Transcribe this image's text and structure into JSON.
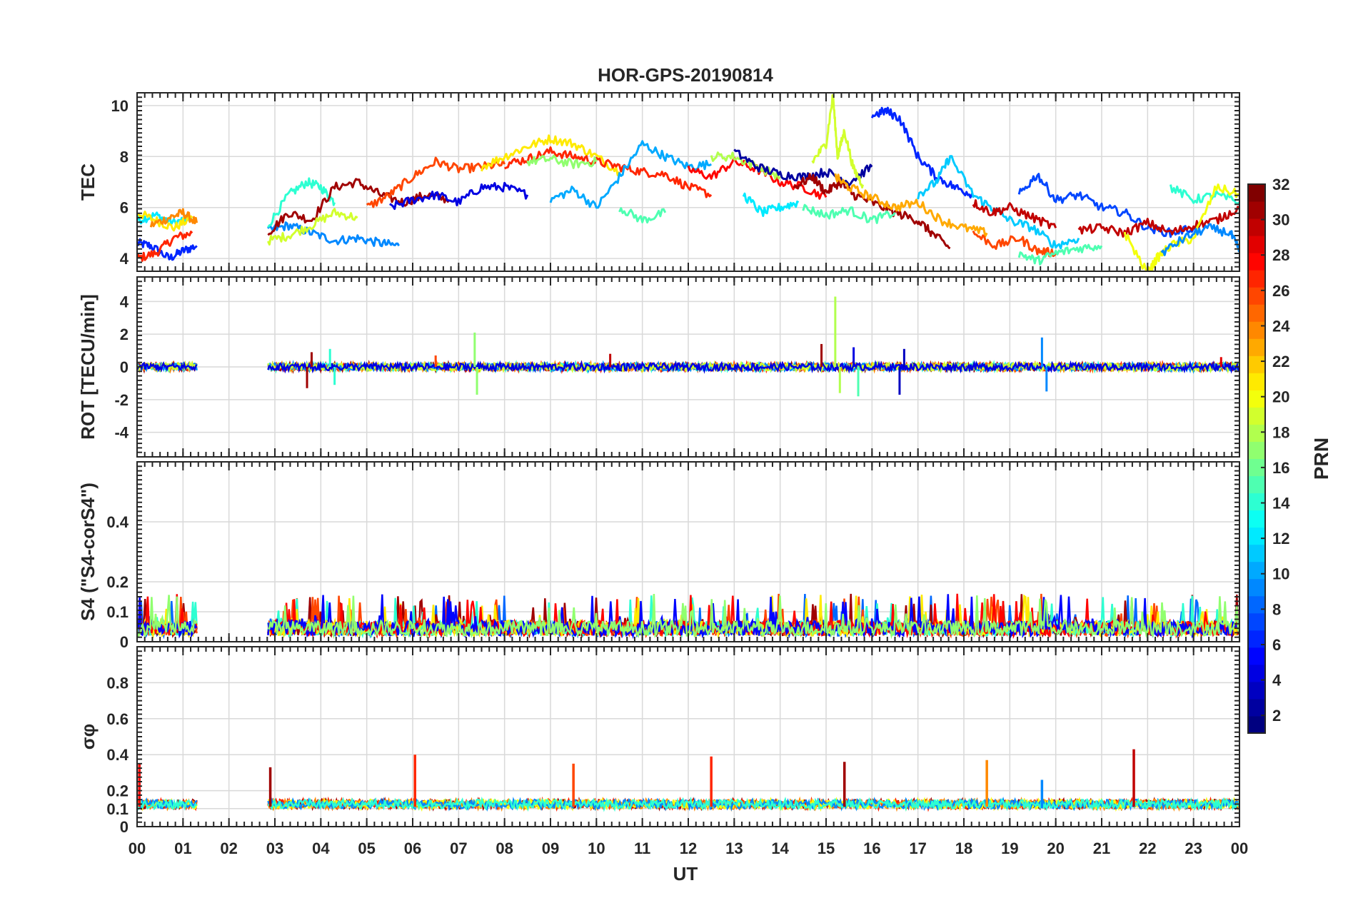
{
  "figure": {
    "title": "HOR-GPS-20190814",
    "xlabel": "UT"
  },
  "chart_data": [
    {
      "type": "line",
      "ylabel": "TEC",
      "x_domain_hours": [
        0,
        24
      ],
      "ylim": [
        3.5,
        10.5
      ],
      "yticks": [
        "4",
        "6",
        "8",
        "10"
      ],
      "ytick_values": [
        4,
        6,
        8,
        10
      ],
      "grid": true,
      "series": [
        {
          "color_prn": 6,
          "x": [
            0.0,
            0.3,
            0.7,
            1.0,
            1.3
          ],
          "y": [
            4.6,
            4.5,
            4.0,
            4.3,
            4.5
          ]
        },
        {
          "color_prn": 12,
          "x": [
            0.0,
            0.4,
            0.8,
            1.2
          ],
          "y": [
            5.5,
            5.7,
            5.4,
            5.6
          ]
        },
        {
          "color_prn": 27,
          "x": [
            0.0,
            0.4,
            0.8,
            1.2
          ],
          "y": [
            4.0,
            4.2,
            4.8,
            5.0
          ]
        },
        {
          "color_prn": 21,
          "x": [
            0.0,
            0.4,
            0.8,
            1.2
          ],
          "y": [
            5.8,
            5.5,
            5.2,
            5.6
          ]
        },
        {
          "color_prn": 24,
          "x": [
            0.3,
            0.7,
            1.0,
            1.3
          ],
          "y": [
            5.3,
            5.6,
            5.8,
            5.4
          ]
        },
        {
          "color_prn": 9,
          "x": [
            2.85,
            3.3,
            3.8,
            4.3,
            4.8,
            5.3,
            5.7
          ],
          "y": [
            5.1,
            5.3,
            5.0,
            4.7,
            4.8,
            4.6,
            4.5
          ]
        },
        {
          "color_prn": 14,
          "x": [
            2.85,
            3.3,
            3.7,
            4.0,
            4.3
          ],
          "y": [
            5.3,
            6.5,
            7.0,
            6.8,
            6.2
          ]
        },
        {
          "color_prn": 31,
          "x": [
            2.85,
            3.3,
            3.8,
            4.3,
            4.8,
            5.3,
            5.8,
            6.3,
            6.8
          ],
          "y": [
            5.0,
            5.8,
            5.5,
            6.8,
            7.0,
            6.5,
            6.2,
            6.5,
            6.3
          ]
        },
        {
          "color_prn": 19,
          "x": [
            2.85,
            3.3,
            3.8,
            4.3,
            4.8
          ],
          "y": [
            4.7,
            4.9,
            5.3,
            5.8,
            5.6
          ]
        },
        {
          "color_prn": 26,
          "x": [
            5.0,
            5.5,
            6.0,
            6.5,
            7.0,
            7.5,
            8.0
          ],
          "y": [
            6.0,
            6.5,
            7.2,
            7.8,
            7.5,
            7.6,
            7.7
          ]
        },
        {
          "color_prn": 4,
          "x": [
            5.5,
            6.0,
            6.5,
            7.0,
            7.5,
            8.0,
            8.5
          ],
          "y": [
            6.0,
            6.3,
            6.5,
            6.2,
            6.8,
            6.8,
            6.5
          ]
        },
        {
          "color_prn": 21,
          "x": [
            7.5,
            8.0,
            8.5,
            9.0,
            9.5,
            10.0,
            10.5
          ],
          "y": [
            7.6,
            8.0,
            8.4,
            8.7,
            8.5,
            8.0,
            7.4
          ]
        },
        {
          "color_prn": 27,
          "x": [
            8.0,
            8.5,
            9.0,
            9.5,
            10.0,
            10.5,
            11.0,
            11.5,
            12.0,
            12.5
          ],
          "y": [
            7.7,
            7.9,
            8.2,
            8.0,
            7.8,
            7.6,
            7.4,
            7.3,
            6.8,
            6.5
          ]
        },
        {
          "color_prn": 17,
          "x": [
            8.5,
            9.0,
            9.5,
            10.0
          ],
          "y": [
            7.8,
            7.9,
            7.7,
            7.8
          ]
        },
        {
          "color_prn": 10,
          "x": [
            9.0,
            9.5,
            10.0,
            10.5,
            11.0,
            11.5,
            12.0,
            12.5
          ],
          "y": [
            6.3,
            6.7,
            6.0,
            7.2,
            8.5,
            8.0,
            7.6,
            7.7
          ]
        },
        {
          "color_prn": 15,
          "x": [
            10.5,
            11.0,
            11.5
          ],
          "y": [
            6.0,
            5.5,
            5.8
          ]
        },
        {
          "color_prn": 28,
          "x": [
            12.0,
            12.5,
            13.0,
            13.5,
            14.0,
            14.5,
            15.0
          ],
          "y": [
            7.5,
            7.2,
            7.8,
            7.5,
            7.0,
            6.8,
            6.4
          ]
        },
        {
          "color_prn": 18,
          "x": [
            12.5,
            13.0,
            13.5,
            14.0
          ],
          "y": [
            8.0,
            8.0,
            7.6,
            7.2
          ]
        },
        {
          "color_prn": 2,
          "x": [
            13.0,
            13.5,
            14.0,
            14.5,
            15.0,
            15.5,
            16.0
          ],
          "y": [
            8.2,
            7.6,
            7.3,
            7.2,
            7.4,
            7.0,
            7.6
          ]
        },
        {
          "color_prn": 12,
          "x": [
            13.2,
            13.6,
            14.0,
            14.4
          ],
          "y": [
            6.5,
            5.8,
            6.0,
            6.2
          ]
        },
        {
          "color_prn": 31,
          "x": [
            14.3,
            14.7,
            15.0,
            15.3,
            15.6,
            16.0,
            16.5,
            17.0,
            17.3,
            17.7
          ],
          "y": [
            6.8,
            7.2,
            6.6,
            7.0,
            6.5,
            6.2,
            5.8,
            5.5,
            5.0,
            4.4
          ]
        },
        {
          "color_prn": 19,
          "x": [
            14.7,
            15.0,
            15.15,
            15.25,
            15.4,
            15.6,
            15.8
          ],
          "y": [
            7.8,
            8.5,
            10.4,
            8.0,
            9.0,
            7.5,
            6.9
          ]
        },
        {
          "color_prn": 15,
          "x": [
            14.5,
            15.0,
            15.5,
            16.0,
            16.5
          ],
          "y": [
            6.0,
            5.7,
            5.9,
            5.5,
            5.8
          ]
        },
        {
          "color_prn": 23,
          "x": [
            15.2,
            15.5,
            16.0,
            16.5,
            17.0,
            17.5,
            18.0,
            18.5
          ],
          "y": [
            7.2,
            6.8,
            6.4,
            6.0,
            6.2,
            5.5,
            5.2,
            5.0
          ]
        },
        {
          "color_prn": 6,
          "x": [
            16.0,
            16.3,
            16.6,
            17.0,
            17.4,
            17.8,
            18.2
          ],
          "y": [
            9.6,
            9.8,
            9.5,
            8.0,
            7.2,
            6.8,
            6.5
          ]
        },
        {
          "color_prn": 11,
          "x": [
            17.0,
            17.4,
            17.7,
            18.2,
            18.6,
            19.0,
            19.5,
            20.0,
            20.5
          ],
          "y": [
            6.5,
            7.0,
            8.0,
            6.5,
            6.0,
            5.5,
            5.2,
            4.5,
            4.8
          ]
        },
        {
          "color_prn": 26,
          "x": [
            18.2,
            18.7,
            19.2,
            19.6,
            20.0
          ],
          "y": [
            5.0,
            4.5,
            4.8,
            4.3,
            4.2
          ]
        },
        {
          "color_prn": 15,
          "x": [
            19.2,
            19.6,
            20.0,
            20.5,
            21.0
          ],
          "y": [
            4.2,
            3.9,
            4.2,
            4.4,
            4.5
          ]
        },
        {
          "color_prn": 30,
          "x": [
            18.2,
            18.6,
            19.0,
            19.5,
            20.0
          ],
          "y": [
            6.2,
            5.8,
            6.0,
            5.6,
            5.2
          ]
        },
        {
          "color_prn": 7,
          "x": [
            19.2,
            19.6,
            20.0,
            20.5,
            21.0,
            21.5,
            22.0,
            22.5,
            23.0
          ],
          "y": [
            6.5,
            7.3,
            6.3,
            6.5,
            6.0,
            5.8,
            5.2,
            5.0,
            5.2
          ]
        },
        {
          "color_prn": 30,
          "x": [
            20.5,
            21.0,
            21.5,
            22.0,
            22.5,
            23.0,
            23.5,
            24.0
          ],
          "y": [
            5.1,
            5.2,
            5.0,
            5.4,
            5.0,
            5.3,
            5.5,
            6.0
          ]
        },
        {
          "color_prn": 14,
          "x": [
            22.5,
            23.0,
            23.5,
            24.0
          ],
          "y": [
            6.8,
            6.3,
            6.5,
            6.2
          ]
        },
        {
          "color_prn": 20,
          "x": [
            21.5,
            22.0,
            22.2,
            22.5,
            23.0,
            23.5,
            24.0
          ],
          "y": [
            5.0,
            3.4,
            4.0,
            4.5,
            4.8,
            6.8,
            6.5
          ]
        },
        {
          "color_prn": 9,
          "x": [
            22.3,
            22.8,
            23.3,
            23.8,
            24.0
          ],
          "y": [
            4.2,
            4.8,
            5.2,
            5.0,
            4.3
          ]
        }
      ]
    },
    {
      "type": "line",
      "ylabel": "ROT [TECU/min]",
      "x_domain_hours": [
        0,
        24
      ],
      "ylim": [
        -5.5,
        5.5
      ],
      "yticks": [
        "-4",
        "-2",
        "0",
        "2",
        "4"
      ],
      "ytick_values": [
        -4,
        -2,
        0,
        2,
        4
      ],
      "grid": true,
      "spikes": [
        {
          "x": 3.7,
          "y": -1.3,
          "color_prn": 31
        },
        {
          "x": 3.8,
          "y": 0.9,
          "color_prn": 31
        },
        {
          "x": 4.2,
          "y": 1.1,
          "color_prn": 14
        },
        {
          "x": 4.3,
          "y": -1.1,
          "color_prn": 14
        },
        {
          "x": 6.5,
          "y": 0.7,
          "color_prn": 26
        },
        {
          "x": 7.35,
          "y": 2.1,
          "color_prn": 17
        },
        {
          "x": 7.4,
          "y": -1.7,
          "color_prn": 17
        },
        {
          "x": 10.3,
          "y": 0.8,
          "color_prn": 30
        },
        {
          "x": 14.9,
          "y": 1.4,
          "color_prn": 31
        },
        {
          "x": 15.2,
          "y": 4.3,
          "color_prn": 18
        },
        {
          "x": 15.3,
          "y": -1.6,
          "color_prn": 18
        },
        {
          "x": 15.6,
          "y": 1.2,
          "color_prn": 4
        },
        {
          "x": 15.7,
          "y": -1.8,
          "color_prn": 15
        },
        {
          "x": 16.6,
          "y": -1.7,
          "color_prn": 3
        },
        {
          "x": 16.7,
          "y": 1.1,
          "color_prn": 3
        },
        {
          "x": 19.7,
          "y": 1.8,
          "color_prn": 9
        },
        {
          "x": 19.8,
          "y": -1.5,
          "color_prn": 9
        },
        {
          "x": 23.6,
          "y": 0.6,
          "color_prn": 29
        }
      ],
      "activity_segments": [
        [
          0,
          1.3
        ],
        [
          2.85,
          24
        ]
      ]
    },
    {
      "type": "line",
      "ylabel": "S4 (\"S4-corS4\")",
      "x_domain_hours": [
        0,
        24
      ],
      "ylim": [
        0,
        0.6
      ],
      "yticks": [
        "0",
        "0.1",
        "0.2",
        "0.4"
      ],
      "ytick_values": [
        0,
        0.1,
        0.2,
        0.4
      ],
      "grid": true,
      "activity_segments": [
        [
          0,
          1.3
        ],
        [
          2.85,
          24
        ]
      ]
    },
    {
      "type": "line",
      "ylabel": "σφ",
      "x_domain_hours": [
        0,
        24
      ],
      "ylim": [
        0,
        1
      ],
      "yticks": [
        "0",
        "0.1",
        "0.2",
        "0.4",
        "0.6",
        "0.8"
      ],
      "ytick_values": [
        0,
        0.1,
        0.2,
        0.4,
        0.6,
        0.8
      ],
      "grid": true,
      "spikes": [
        {
          "x": 0.05,
          "y": 0.35,
          "color_prn": 28
        },
        {
          "x": 2.9,
          "y": 0.33,
          "color_prn": 31
        },
        {
          "x": 6.05,
          "y": 0.4,
          "color_prn": 27
        },
        {
          "x": 9.5,
          "y": 0.35,
          "color_prn": 26
        },
        {
          "x": 12.5,
          "y": 0.39,
          "color_prn": 27
        },
        {
          "x": 15.4,
          "y": 0.36,
          "color_prn": 31
        },
        {
          "x": 18.5,
          "y": 0.37,
          "color_prn": 24
        },
        {
          "x": 19.7,
          "y": 0.26,
          "color_prn": 9
        },
        {
          "x": 21.7,
          "y": 0.43,
          "color_prn": 30
        }
      ],
      "activity_segments": [
        [
          0,
          1.3
        ],
        [
          2.85,
          24
        ]
      ]
    }
  ],
  "xaxis": {
    "ticks": [
      "00",
      "01",
      "02",
      "03",
      "04",
      "05",
      "06",
      "07",
      "08",
      "09",
      "10",
      "11",
      "12",
      "13",
      "14",
      "15",
      "16",
      "17",
      "18",
      "19",
      "20",
      "21",
      "22",
      "23",
      "00"
    ]
  },
  "colorbar": {
    "label": "PRN",
    "range": [
      1,
      32
    ],
    "ticks": [
      "2",
      "4",
      "6",
      "8",
      "10",
      "12",
      "14",
      "16",
      "18",
      "20",
      "22",
      "24",
      "26",
      "28",
      "30",
      "32"
    ],
    "tick_values": [
      2,
      4,
      6,
      8,
      10,
      12,
      14,
      16,
      18,
      20,
      22,
      24,
      26,
      28,
      30,
      32
    ],
    "colormap": "jet"
  }
}
